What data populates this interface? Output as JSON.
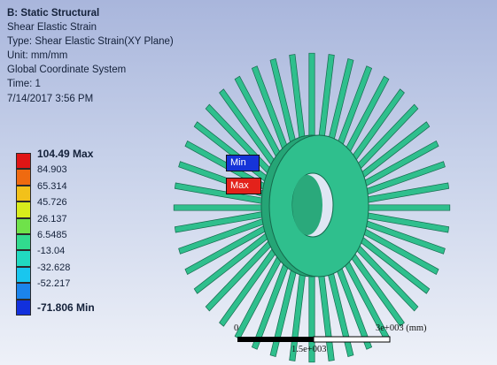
{
  "info": {
    "title": "B: Static Structural",
    "result_name": "Shear Elastic Strain",
    "type": "Type: Shear Elastic Strain(XY Plane)",
    "unit": "Unit: mm/mm",
    "coord_system": "Global Coordinate System",
    "time": "Time: 1",
    "timestamp": "7/14/2017 3:56 PM"
  },
  "legend": {
    "items": [
      {
        "label": "104.49 Max",
        "color": "#e01515",
        "bold": true
      },
      {
        "label": "84.903",
        "color": "#ef6a10",
        "bold": false
      },
      {
        "label": "65.314",
        "color": "#f2c11a",
        "bold": false
      },
      {
        "label": "45.726",
        "color": "#d8ec1c",
        "bold": false
      },
      {
        "label": "26.137",
        "color": "#6fe24a",
        "bold": false
      },
      {
        "label": "6.5485",
        "color": "#31da8e",
        "bold": false
      },
      {
        "label": "-13.04",
        "color": "#21d9c0",
        "bold": false
      },
      {
        "label": "-32.628",
        "color": "#19c6ee",
        "bold": false
      },
      {
        "label": "-52.217",
        "color": "#1b84ec",
        "bold": false
      },
      {
        "label": "-71.806 Min",
        "color": "#1230dc",
        "bold": true
      }
    ]
  },
  "probes": {
    "min_label": "Min",
    "max_label": "Max"
  },
  "scale_bar": {
    "start_label": "0",
    "mid_label": "1.5e+003",
    "end_label": "3e+003 (mm)"
  },
  "colors": {
    "model": "#2fbf8d",
    "model_edge": "#156a4d"
  }
}
